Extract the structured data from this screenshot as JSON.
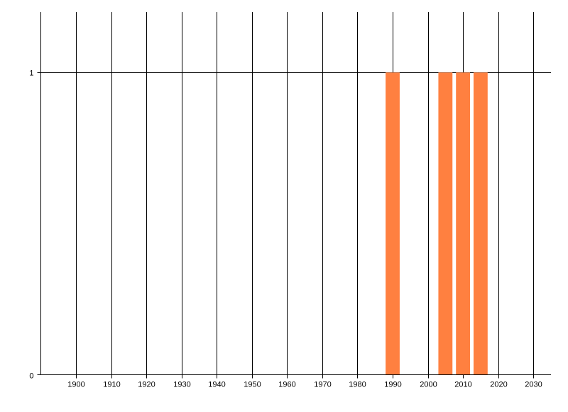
{
  "chart_data": {
    "type": "bar",
    "title": "",
    "xlabel": "",
    "ylabel": "",
    "xlim": [
      1890,
      2035
    ],
    "ylim": [
      0,
      1.2
    ],
    "x_ticks": [
      1900,
      1910,
      1920,
      1930,
      1940,
      1950,
      1960,
      1970,
      1980,
      1990,
      2000,
      2010,
      2020,
      2030
    ],
    "x_tick_labels": [
      "1900",
      "1910",
      "1920",
      "1930",
      "1940",
      "1950",
      "1960",
      "1970",
      "1980",
      "1990",
      "2000",
      "2010",
      "2020",
      "2030"
    ],
    "y_ticks": [
      0,
      1
    ],
    "y_tick_labels": [
      "0",
      "1"
    ],
    "grid": {
      "vertical": true,
      "horizontal": true
    },
    "bar_width_years": 4,
    "series": [
      {
        "x": [
          1990,
          2005,
          2010,
          2015
        ],
        "values": [
          1,
          1,
          1,
          1
        ],
        "color": "#FF8040"
      }
    ]
  }
}
